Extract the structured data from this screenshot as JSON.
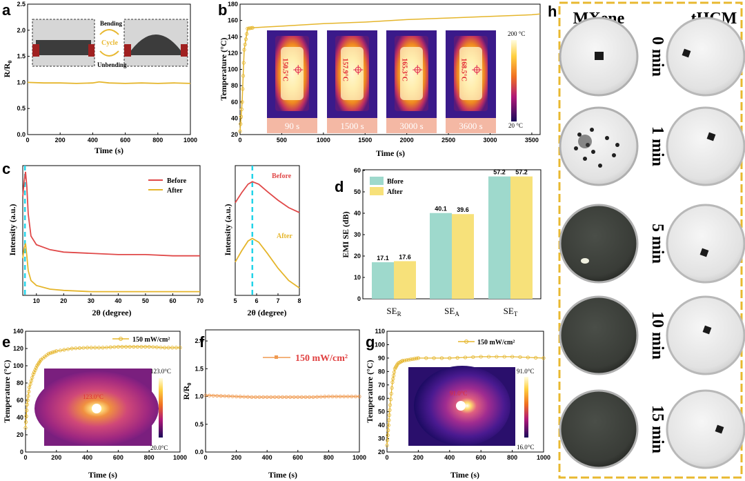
{
  "colors": {
    "gold": "#e5b52a",
    "red": "#e04848",
    "orange": "#f09a50",
    "teal": "#9ed9cc",
    "yellow": "#f7e17a",
    "cyan": "#22d3e8",
    "frame": "#e8b830"
  },
  "chart_data": [
    {
      "panel": "a",
      "type": "line",
      "xlabel": "Time (s)",
      "ylabel": "R/R0",
      "xlim": [
        0,
        1000
      ],
      "ylim": [
        0,
        2.5
      ],
      "xticks": [
        0,
        200,
        400,
        600,
        800,
        1000
      ],
      "yticks": [
        0.0,
        0.5,
        1.0,
        1.5,
        2.0,
        2.5
      ],
      "series": [
        {
          "x": [
            0,
            100,
            200,
            300,
            400,
            440,
            500,
            600,
            700,
            800,
            900,
            1000
          ],
          "y": [
            1.0,
            0.99,
            0.99,
            0.98,
            0.99,
            1.01,
            0.99,
            0.98,
            0.99,
            0.98,
            0.99,
            0.98
          ]
        }
      ],
      "inset_labels": [
        "Bending",
        "Cycle",
        "Unbending"
      ]
    },
    {
      "panel": "b",
      "type": "line",
      "xlabel": "Time (s)",
      "ylabel": "Temperature (°C)",
      "xlim": [
        0,
        3600
      ],
      "ylim": [
        20,
        180
      ],
      "xticks": [
        0,
        500,
        1000,
        1500,
        2000,
        2500,
        3000,
        3500
      ],
      "yticks": [
        20,
        40,
        60,
        80,
        100,
        120,
        140,
        160,
        180
      ],
      "series": [
        {
          "x": [
            0,
            25,
            50,
            90,
            150,
            300,
            500,
            1000,
            1500,
            2000,
            2500,
            3000,
            3500,
            3600
          ],
          "y": [
            24,
            60,
            124,
            150,
            151,
            152,
            153,
            156,
            158,
            161,
            163,
            165,
            167,
            168
          ]
        }
      ],
      "thermal_images": [
        {
          "time": "90 s",
          "temp": "150.5°C"
        },
        {
          "time": "1500 s",
          "temp": "157.9°C"
        },
        {
          "time": "3000 s",
          "temp": "165.3°C"
        },
        {
          "time": "3600 s",
          "temp": "168.5°C"
        }
      ],
      "colorbar": {
        "max": "200 °C",
        "min": "20 °C"
      }
    },
    {
      "panel": "c",
      "type": "line",
      "xlabel": "2θ (degree)",
      "ylabel": "Intensity (a.u.)",
      "xlim": [
        5,
        70
      ],
      "xticks": [
        10,
        20,
        30,
        40,
        50,
        60,
        70
      ],
      "legend": [
        "Before",
        "After"
      ],
      "series": [
        {
          "name": "Before",
          "x": [
            5,
            5.5,
            6,
            6.5,
            7,
            8,
            10,
            15,
            20,
            30,
            40,
            50,
            60,
            70
          ],
          "y": [
            0.8,
            0.92,
            1.0,
            0.88,
            0.66,
            0.48,
            0.41,
            0.37,
            0.35,
            0.34,
            0.33,
            0.33,
            0.32,
            0.32
          ]
        },
        {
          "name": "After",
          "x": [
            5,
            5.5,
            6,
            6.5,
            7,
            8,
            10,
            15,
            20,
            30,
            40,
            50,
            60,
            70
          ],
          "y": [
            0.3,
            0.38,
            0.42,
            0.32,
            0.2,
            0.12,
            0.08,
            0.05,
            0.04,
            0.03,
            0.03,
            0.03,
            0.03,
            0.03
          ]
        }
      ],
      "marker_x": 5.8
    },
    {
      "panel": "c-inset",
      "type": "line",
      "xlabel": "2θ (degree)",
      "ylabel": "Intensity (a.u.)",
      "xlim": [
        5,
        8
      ],
      "xticks": [
        5,
        6,
        7,
        8
      ],
      "labels": [
        "Before",
        "After"
      ],
      "series": [
        {
          "name": "Before",
          "x": [
            5,
            5.3,
            5.6,
            5.8,
            6.1,
            6.5,
            7,
            7.5,
            8
          ],
          "y": [
            0.75,
            0.83,
            0.9,
            0.92,
            0.9,
            0.84,
            0.77,
            0.71,
            0.67
          ]
        },
        {
          "name": "After",
          "x": [
            5,
            5.3,
            5.6,
            5.8,
            6.1,
            6.5,
            7,
            7.5,
            8
          ],
          "y": [
            0.27,
            0.36,
            0.44,
            0.46,
            0.43,
            0.34,
            0.22,
            0.12,
            0.06
          ]
        }
      ],
      "marker_x": 5.8
    },
    {
      "panel": "d",
      "type": "bar",
      "ylabel": "EMI SE (dB)",
      "ylim": [
        0,
        60
      ],
      "yticks": [
        0,
        10,
        20,
        30,
        40,
        50,
        60
      ],
      "categories": [
        "SE",
        "SE",
        "SE"
      ],
      "category_subscripts": [
        "R",
        "A",
        "T"
      ],
      "series": [
        {
          "name": "Bfore",
          "values": [
            17.1,
            40.1,
            57.2
          ]
        },
        {
          "name": "After",
          "values": [
            17.6,
            39.6,
            57.2
          ]
        }
      ],
      "value_labels": [
        [
          "17.1",
          "40.1",
          "57.2"
        ],
        [
          "17.6",
          "39.6",
          "57.2"
        ]
      ]
    },
    {
      "panel": "e",
      "type": "line",
      "xlabel": "Time (s)",
      "ylabel": "Temperature (°C)",
      "xlim": [
        0,
        1000
      ],
      "ylim": [
        0,
        140
      ],
      "xticks": [
        0,
        200,
        400,
        600,
        800,
        1000
      ],
      "yticks": [
        0,
        20,
        40,
        60,
        80,
        100,
        120,
        140
      ],
      "legend": [
        "150 mW/cm²"
      ],
      "series": [
        {
          "name": "150 mW/cm²",
          "x": [
            0,
            10,
            25,
            50,
            75,
            100,
            150,
            200,
            300,
            400,
            500,
            600,
            700,
            800,
            900,
            1000
          ],
          "y": [
            28,
            55,
            75,
            90,
            100,
            107,
            114,
            117,
            120,
            121,
            121,
            122,
            122,
            122,
            121,
            121
          ]
        }
      ],
      "colorbar": {
        "max": "123.0°C",
        "min": "20.0°C"
      },
      "inset_temp": "123.0°C"
    },
    {
      "panel": "f",
      "type": "line",
      "xlabel": "Time (s)",
      "ylabel": "R/R0",
      "xlim": [
        0,
        1000
      ],
      "ylim": [
        0,
        2.2
      ],
      "xticks": [
        0,
        200,
        400,
        600,
        800,
        1000
      ],
      "yticks": [
        0.0,
        0.5,
        1.0,
        1.5,
        2.0
      ],
      "legend": [
        "150 mW/cm²"
      ],
      "series": [
        {
          "name": "150 mW/cm²",
          "x": [
            0,
            100,
            200,
            300,
            400,
            500,
            600,
            700,
            800,
            900,
            1000
          ],
          "y": [
            1.02,
            1.01,
            1.0,
            0.99,
            0.99,
            0.99,
            0.99,
            0.99,
            1.0,
            1.0,
            1.0
          ]
        }
      ]
    },
    {
      "panel": "g",
      "type": "line",
      "xlabel": "Time (s)",
      "ylabel": "Temperature (°C)",
      "xlim": [
        0,
        1000
      ],
      "ylim": [
        20,
        110
      ],
      "xticks": [
        0,
        200,
        400,
        600,
        800,
        1000
      ],
      "yticks": [
        20,
        30,
        40,
        50,
        60,
        70,
        80,
        90,
        100,
        110
      ],
      "legend": [
        "150 mW/cm²"
      ],
      "series": [
        {
          "name": "150 mW/cm²",
          "x": [
            0,
            10,
            20,
            35,
            50,
            70,
            100,
            150,
            200,
            400,
            600,
            800,
            1000
          ],
          "y": [
            25,
            40,
            55,
            72,
            82,
            86,
            88,
            89,
            90,
            90,
            91,
            91,
            90
          ]
        }
      ],
      "colorbar": {
        "max": "91.0°C",
        "min": "16.0°C"
      },
      "inset_temp": "91.0°C"
    }
  ],
  "panel_h": {
    "columns": [
      "MXene",
      "tHCM"
    ],
    "times": [
      "0 min",
      "1 min",
      "5 min",
      "10 min",
      "15 min"
    ]
  },
  "panel_labels": [
    "a",
    "b",
    "c",
    "d",
    "e",
    "f",
    "g",
    "h"
  ]
}
